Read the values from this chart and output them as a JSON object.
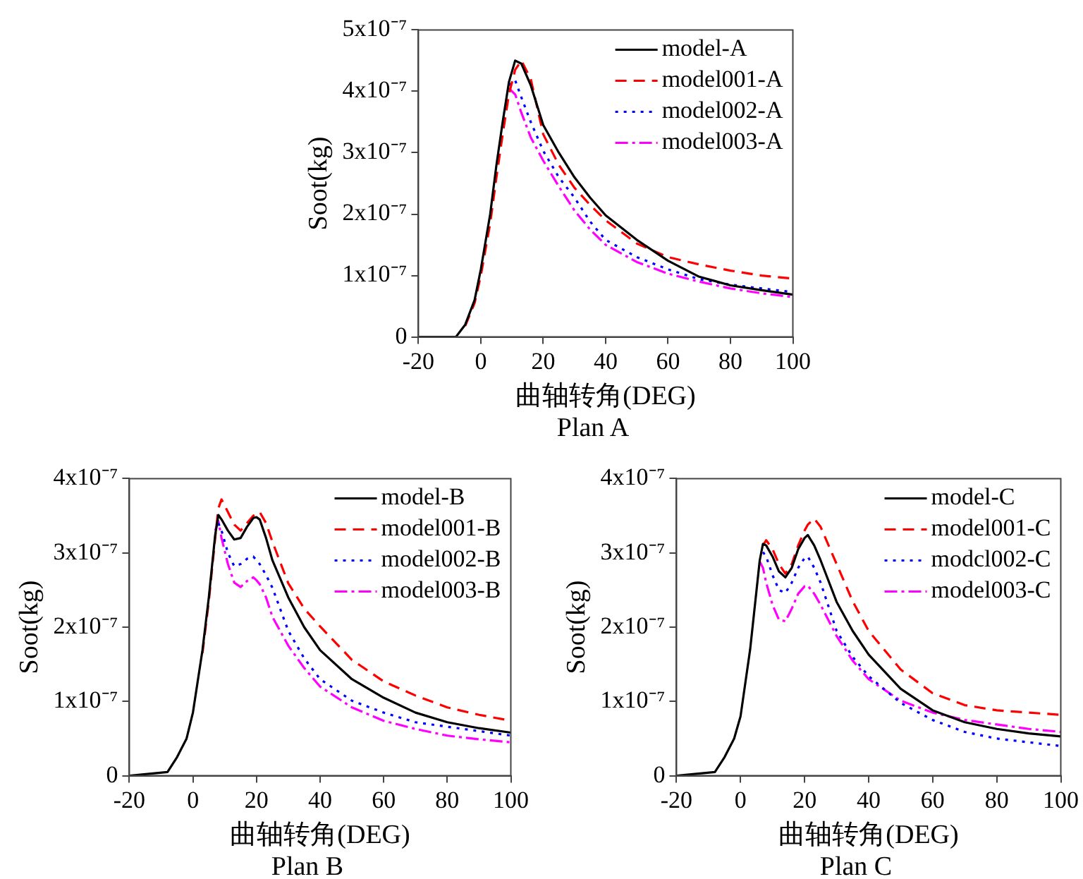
{
  "chart_data": [
    {
      "type": "line",
      "xlabel": "曲轴转角(DEG)",
      "ylabel": "Soot(kg)",
      "annotations": [
        "Plan A"
      ],
      "legend": "top right",
      "grid": false,
      "marker": "none",
      "xlim": [
        -20,
        100
      ],
      "xticks": [
        -20,
        0,
        20,
        40,
        60,
        80,
        100
      ],
      "ylim": [
        0,
        5e-07
      ],
      "yticks": [
        {
          "value": 0,
          "label": "0"
        },
        {
          "value": 1e-07,
          "label": "1x10⁻⁷"
        },
        {
          "value": 2e-07,
          "label": "2x10⁻⁷"
        },
        {
          "value": 3e-07,
          "label": "3x10⁻⁷"
        },
        {
          "value": 4e-07,
          "label": "4x10⁻⁷"
        },
        {
          "value": 5e-07,
          "label": "5x10⁻⁷"
        }
      ],
      "x": [
        -20,
        -8,
        -5,
        -2,
        0,
        3,
        5,
        7,
        9,
        11,
        13,
        16,
        20,
        25,
        30,
        35,
        40,
        50,
        60,
        70,
        80,
        90,
        100
      ],
      "series": [
        {
          "name": "model-A",
          "color": "#000000",
          "line_style": "solid",
          "values": [
            0,
            0,
            2e-08,
            6e-08,
            1.1e-07,
            2e-07,
            2.8e-07,
            3.5e-07,
            4.15e-07,
            4.5e-07,
            4.45e-07,
            4.1e-07,
            3.45e-07,
            3e-07,
            2.6e-07,
            2.27e-07,
            1.98e-07,
            1.58e-07,
            1.24e-07,
            9.8e-08,
            8.4e-08,
            7.6e-08,
            6.9e-08
          ]
        },
        {
          "name": "model001-A",
          "color": "#ff0000",
          "line_style": "dashed",
          "values": [
            null,
            null,
            1.8e-08,
            5.5e-08,
            1e-07,
            1.85e-07,
            2.6e-07,
            3.3e-07,
            3.95e-07,
            4.35e-07,
            4.5e-07,
            4.2e-07,
            3.3e-07,
            2.8e-07,
            2.43e-07,
            2.15e-07,
            1.9e-07,
            1.52e-07,
            1.3e-07,
            1.18e-07,
            1.08e-07,
            1e-07,
            9.5e-08
          ]
        },
        {
          "name": "model002-A",
          "color": "#0000ff",
          "line_style": "dotted",
          "values": [
            null,
            null,
            null,
            null,
            null,
            null,
            null,
            null,
            4.1e-07,
            4.18e-07,
            3.9e-07,
            3.5e-07,
            3.03e-07,
            2.6e-07,
            2.27e-07,
            1.88e-07,
            1.58e-07,
            1.3e-07,
            1.1e-07,
            9.4e-08,
            8.5e-08,
            7.9e-08,
            7.3e-08
          ]
        },
        {
          "name": "model003-A",
          "color": "#ff00ff",
          "line_style": "dashdot",
          "values": [
            null,
            null,
            null,
            null,
            null,
            null,
            null,
            null,
            4.05e-07,
            3.95e-07,
            3.65e-07,
            3.25e-07,
            2.87e-07,
            2.45e-07,
            2.06e-07,
            1.75e-07,
            1.5e-07,
            1.22e-07,
            1.03e-07,
            9e-08,
            7.9e-08,
            7.1e-08,
            6.5e-08
          ]
        }
      ]
    },
    {
      "type": "line",
      "xlabel": "曲轴转角(DEG)",
      "ylabel": "Soot(kg)",
      "annotations": [
        "Plan B"
      ],
      "legend": "top right",
      "grid": false,
      "marker": "none",
      "xlim": [
        -20,
        100
      ],
      "xticks": [
        -20,
        0,
        20,
        40,
        60,
        80,
        100
      ],
      "ylim": [
        0,
        4e-07
      ],
      "yticks": [
        {
          "value": 0,
          "label": "0"
        },
        {
          "value": 1e-07,
          "label": "1x10⁻⁷"
        },
        {
          "value": 2e-07,
          "label": "2x10⁻⁷"
        },
        {
          "value": 3e-07,
          "label": "3x10⁻⁷"
        },
        {
          "value": 4e-07,
          "label": "4x10⁻⁷"
        }
      ],
      "x": [
        -20,
        -8,
        -5,
        -2,
        0,
        3,
        5,
        7,
        8,
        9,
        11,
        13,
        15,
        17,
        19,
        20,
        21,
        23,
        25,
        30,
        35,
        40,
        50,
        60,
        70,
        80,
        90,
        100
      ],
      "series": [
        {
          "name": "model-B",
          "color": "#000000",
          "line_style": "solid",
          "values": [
            0,
            5e-09,
            2.5e-08,
            5e-08,
            8.5e-08,
            1.69e-07,
            2.4e-07,
            3.24e-07,
            3.51e-07,
            3.45e-07,
            3.3e-07,
            3.18e-07,
            3.2e-07,
            3.35e-07,
            3.47e-07,
            3.48e-07,
            3.45e-07,
            3.2e-07,
            2.9e-07,
            2.4e-07,
            2e-07,
            1.69e-07,
            1.3e-07,
            1.05e-07,
            8.5e-08,
            7.2e-08,
            6.4e-08,
            5.8e-08
          ]
        },
        {
          "name": "model001-B",
          "color": "#ff0000",
          "line_style": "dashed",
          "values": [
            null,
            null,
            null,
            null,
            null,
            1.65e-07,
            2.35e-07,
            3.2e-07,
            3.6e-07,
            3.72e-07,
            3.55e-07,
            3.38e-07,
            3.3e-07,
            3.4e-07,
            3.5e-07,
            3.53e-07,
            3.55e-07,
            3.4e-07,
            3.15e-07,
            2.59e-07,
            2.25e-07,
            2.01e-07,
            1.56e-07,
            1.27e-07,
            1.08e-07,
            9.2e-08,
            8.2e-08,
            7.4e-08
          ]
        },
        {
          "name": "model002-B",
          "color": "#0000ff",
          "line_style": "dotted",
          "values": [
            null,
            null,
            null,
            null,
            null,
            null,
            null,
            null,
            3.4e-07,
            3.3e-07,
            3e-07,
            2.82e-07,
            2.85e-07,
            2.92e-07,
            2.95e-07,
            2.9e-07,
            2.85e-07,
            2.7e-07,
            2.53e-07,
            1.95e-07,
            1.58e-07,
            1.3e-07,
            1.01e-07,
            8.5e-08,
            7.2e-08,
            6.6e-08,
            6e-08,
            5.4e-08
          ]
        },
        {
          "name": "model003-B",
          "color": "#ff00ff",
          "line_style": "dashdot",
          "values": [
            null,
            null,
            null,
            null,
            null,
            null,
            null,
            3.3e-07,
            3.43e-07,
            3.2e-07,
            2.85e-07,
            2.6e-07,
            2.54e-07,
            2.62e-07,
            2.67e-07,
            2.63e-07,
            2.58e-07,
            2.4e-07,
            2.14e-07,
            1.75e-07,
            1.45e-07,
            1.2e-07,
            9.2e-08,
            7.4e-08,
            6.3e-08,
            5.4e-08,
            4.9e-08,
            4.5e-08
          ]
        }
      ]
    },
    {
      "type": "line",
      "xlabel": "曲轴转角(DEG)",
      "ylabel": "Soot(kg)",
      "annotations": [
        "Plan C"
      ],
      "legend": "top right",
      "grid": false,
      "marker": "none",
      "xlim": [
        -20,
        100
      ],
      "xticks": [
        -20,
        0,
        20,
        40,
        60,
        80,
        100
      ],
      "ylim": [
        0,
        4e-07
      ],
      "yticks": [
        {
          "value": 0,
          "label": "0"
        },
        {
          "value": 1e-07,
          "label": "1x10⁻⁷"
        },
        {
          "value": 2e-07,
          "label": "2x10⁻⁷"
        },
        {
          "value": 3e-07,
          "label": "3x10⁻⁷"
        },
        {
          "value": 4e-07,
          "label": "4x10⁻⁷"
        }
      ],
      "x": [
        -20,
        -8,
        -5,
        -2,
        0,
        3,
        5,
        6,
        7,
        8,
        10,
        12,
        14,
        16,
        18,
        20,
        21,
        23,
        25,
        30,
        35,
        40,
        50,
        60,
        70,
        80,
        90,
        100
      ],
      "series": [
        {
          "name": "model-C",
          "color": "#000000",
          "line_style": "solid",
          "values": [
            0,
            5e-09,
            2.5e-08,
            5e-08,
            8e-08,
            1.7e-07,
            2.5e-07,
            2.9e-07,
            3.12e-07,
            3.1e-07,
            2.95e-07,
            2.75e-07,
            2.67e-07,
            2.8e-07,
            3.05e-07,
            3.2e-07,
            3.24e-07,
            3.1e-07,
            2.9e-07,
            2.34e-07,
            1.95e-07,
            1.63e-07,
            1.17e-07,
            8.8e-08,
            7.2e-08,
            6.3e-08,
            5.7e-08,
            5.3e-08
          ]
        },
        {
          "name": "model001-C",
          "color": "#ff0000",
          "line_style": "dashed",
          "values": [
            null,
            null,
            null,
            null,
            null,
            null,
            null,
            null,
            3.1e-07,
            3.17e-07,
            3.05e-07,
            2.85e-07,
            2.72e-07,
            2.85e-07,
            3.1e-07,
            3.3e-07,
            3.38e-07,
            3.46e-07,
            3.35e-07,
            2.85e-07,
            2.35e-07,
            1.95e-07,
            1.43e-07,
            1.11e-07,
            9.5e-08,
            8.8e-08,
            8.5e-08,
            8.2e-08
          ]
        },
        {
          "name": "modcl002-C",
          "color": "#0000ff",
          "line_style": "dotted",
          "values": [
            null,
            null,
            null,
            null,
            null,
            null,
            null,
            null,
            3.01e-07,
            2.95e-07,
            2.7e-07,
            2.5e-07,
            2.46e-07,
            2.6e-07,
            2.8e-07,
            2.93e-07,
            2.95e-07,
            2.8e-07,
            2.6e-07,
            1.95e-07,
            1.6e-07,
            1.34e-07,
            9.8e-08,
            7.5e-08,
            5.9e-08,
            5e-08,
            4.5e-08,
            4e-08
          ]
        },
        {
          "name": "model003-C",
          "color": "#ff00ff",
          "line_style": "dashdot",
          "values": [
            null,
            null,
            null,
            null,
            null,
            null,
            null,
            2.88e-07,
            2.8e-07,
            2.6e-07,
            2.3e-07,
            2.1e-07,
            2.08e-07,
            2.25e-07,
            2.45e-07,
            2.55e-07,
            2.56e-07,
            2.45e-07,
            2.3e-07,
            1.88e-07,
            1.55e-07,
            1.3e-07,
            1.01e-07,
            8.5e-08,
            7.5e-08,
            6.9e-08,
            6.3e-08,
            5.9e-08
          ]
        }
      ]
    }
  ]
}
